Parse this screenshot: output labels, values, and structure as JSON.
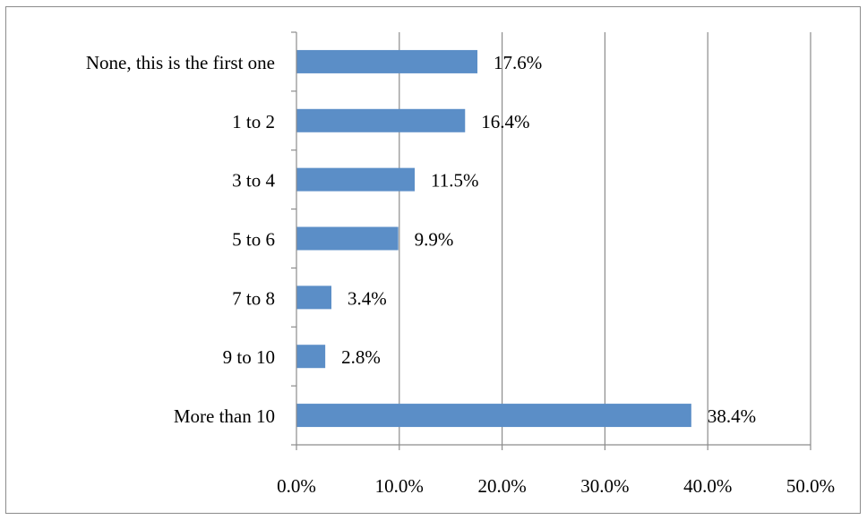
{
  "chart_data": {
    "type": "bar",
    "orientation": "horizontal",
    "title": "",
    "xlabel": "",
    "ylabel": "",
    "categories": [
      "None, this is the first one",
      "1 to 2",
      "3 to 4",
      "5 to 6",
      "7 to 8",
      "9 to 10",
      "More than 10"
    ],
    "values": [
      17.6,
      16.4,
      11.5,
      9.9,
      3.4,
      2.8,
      38.4
    ],
    "value_labels": [
      "17.6%",
      "16.4%",
      "11.5%",
      "9.9%",
      "3.4%",
      "2.8%",
      "38.4%"
    ],
    "xlim": [
      0,
      50
    ],
    "xticks": [
      0,
      10,
      20,
      30,
      40,
      50
    ],
    "xtick_labels": [
      "0.0%",
      "10.0%",
      "20.0%",
      "30.0%",
      "40.0%",
      "50.0%"
    ],
    "grid": "vertical-major",
    "legend": "none",
    "colors": {
      "bar": "#5b8ec7",
      "grid": "#8c8c8c",
      "axis": "#8c8c8c",
      "frame": "#8c8c8c"
    }
  }
}
